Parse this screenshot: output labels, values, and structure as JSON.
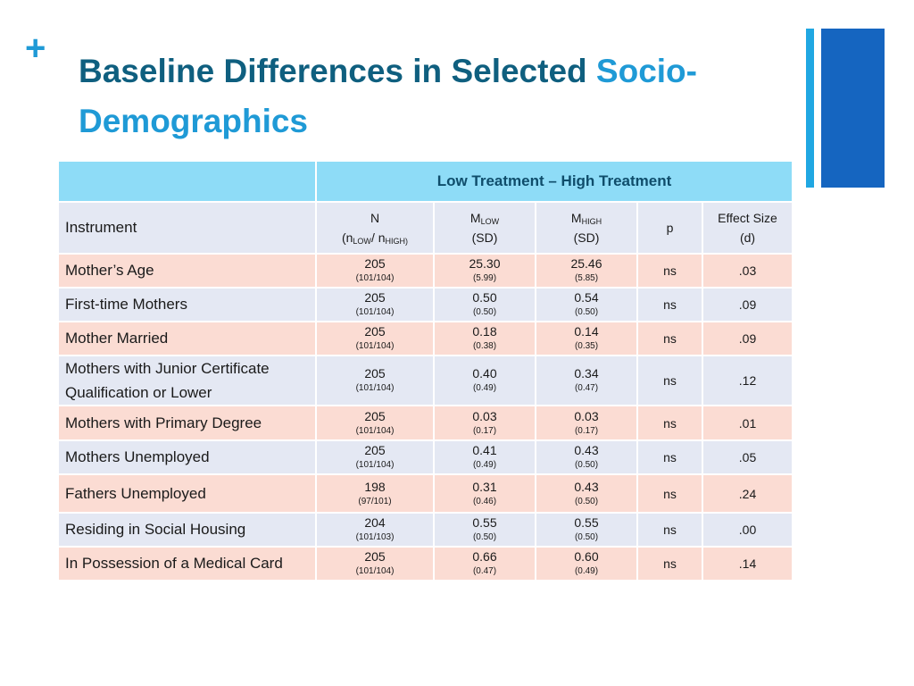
{
  "slide": {
    "plus_glyph": "+",
    "title_main": "Baseline Differences in Selected ",
    "title_accent_1": "Socio-",
    "title_accent_2": "Demographics",
    "colors": {
      "title": "#0f5f7f",
      "accent": "#1f9ad6",
      "bar_thin": "#20a7e2",
      "bar_thick": "#1565c0"
    }
  },
  "table": {
    "group_header": "Low Treatment – High Treatment",
    "columns": {
      "instrument": "Instrument",
      "n_label": "N",
      "n_paren_open": "(n",
      "n_low_sub": "LOW",
      "n_slash": "/ n",
      "n_high_sub": "HIGH)",
      "mlow_m": "M",
      "mlow_sub": "LOW",
      "mlow_sd": "(SD)",
      "mhigh_m": "M",
      "mhigh_sub": "HIGH",
      "mhigh_sd": "(SD)",
      "p": "p",
      "effect_1": "Effect Size",
      "effect_2": "(d)"
    },
    "rows": [
      {
        "label": "Mother’s Age",
        "n": "205",
        "n_split": "(101/104)",
        "mlow": "25.30",
        "mlow_sd": "(5.99)",
        "mhigh": "25.46",
        "mhigh_sd": "(5.85)",
        "p": "ns",
        "d": ".03"
      },
      {
        "label": "First-time Mothers",
        "n": "205",
        "n_split": "(101/104)",
        "mlow": "0.50",
        "mlow_sd": "(0.50)",
        "mhigh": "0.54",
        "mhigh_sd": "(0.50)",
        "p": "ns",
        "d": ".09"
      },
      {
        "label": "Mother Married",
        "n": "205",
        "n_split": "(101/104)",
        "mlow": "0.18",
        "mlow_sd": "(0.38)",
        "mhigh": "0.14",
        "mhigh_sd": "(0.35)",
        "p": "ns",
        "d": ".09"
      },
      {
        "label_1": "Mothers with Junior Certificate",
        "label_2": "Qualification or Lower",
        "n": "205",
        "n_split": "(101/104)",
        "mlow": "0.40",
        "mlow_sd": "(0.49)",
        "mhigh": "0.34",
        "mhigh_sd": "(0.47)",
        "p": "ns",
        "d": ".12"
      },
      {
        "label": "Mothers with Primary Degree",
        "n": "205",
        "n_split": "(101/104)",
        "mlow": "0.03",
        "mlow_sd": "(0.17)",
        "mhigh": "0.03",
        "mhigh_sd": "(0.17)",
        "p": "ns",
        "d": ".01"
      },
      {
        "label": "Mothers Unemployed",
        "n": "205",
        "n_split": "(101/104)",
        "mlow": "0.41",
        "mlow_sd": "(0.49)",
        "mhigh": "0.43",
        "mhigh_sd": "(0.50)",
        "p": "ns",
        "d": ".05"
      },
      {
        "label": "Fathers Unemployed",
        "n": "198",
        "n_split": "(97/101)",
        "mlow": "0.31",
        "mlow_sd": "(0.46)",
        "mhigh": "0.43",
        "mhigh_sd": "(0.50)",
        "p": "ns",
        "d": ".24"
      },
      {
        "label": "Residing in Social Housing",
        "n": "204",
        "n_split": "(101/103)",
        "mlow": "0.55",
        "mlow_sd": "(0.50)",
        "mhigh": "0.55",
        "mhigh_sd": "(0.50)",
        "p": "ns",
        "d": ".00"
      },
      {
        "label": "In Possession of a Medical Card",
        "n": "205",
        "n_split": "(101/104)",
        "mlow": "0.66",
        "mlow_sd": "(0.47)",
        "mhigh": "0.60",
        "mhigh_sd": "(0.49)",
        "p": "ns",
        "d": ".14"
      }
    ]
  }
}
